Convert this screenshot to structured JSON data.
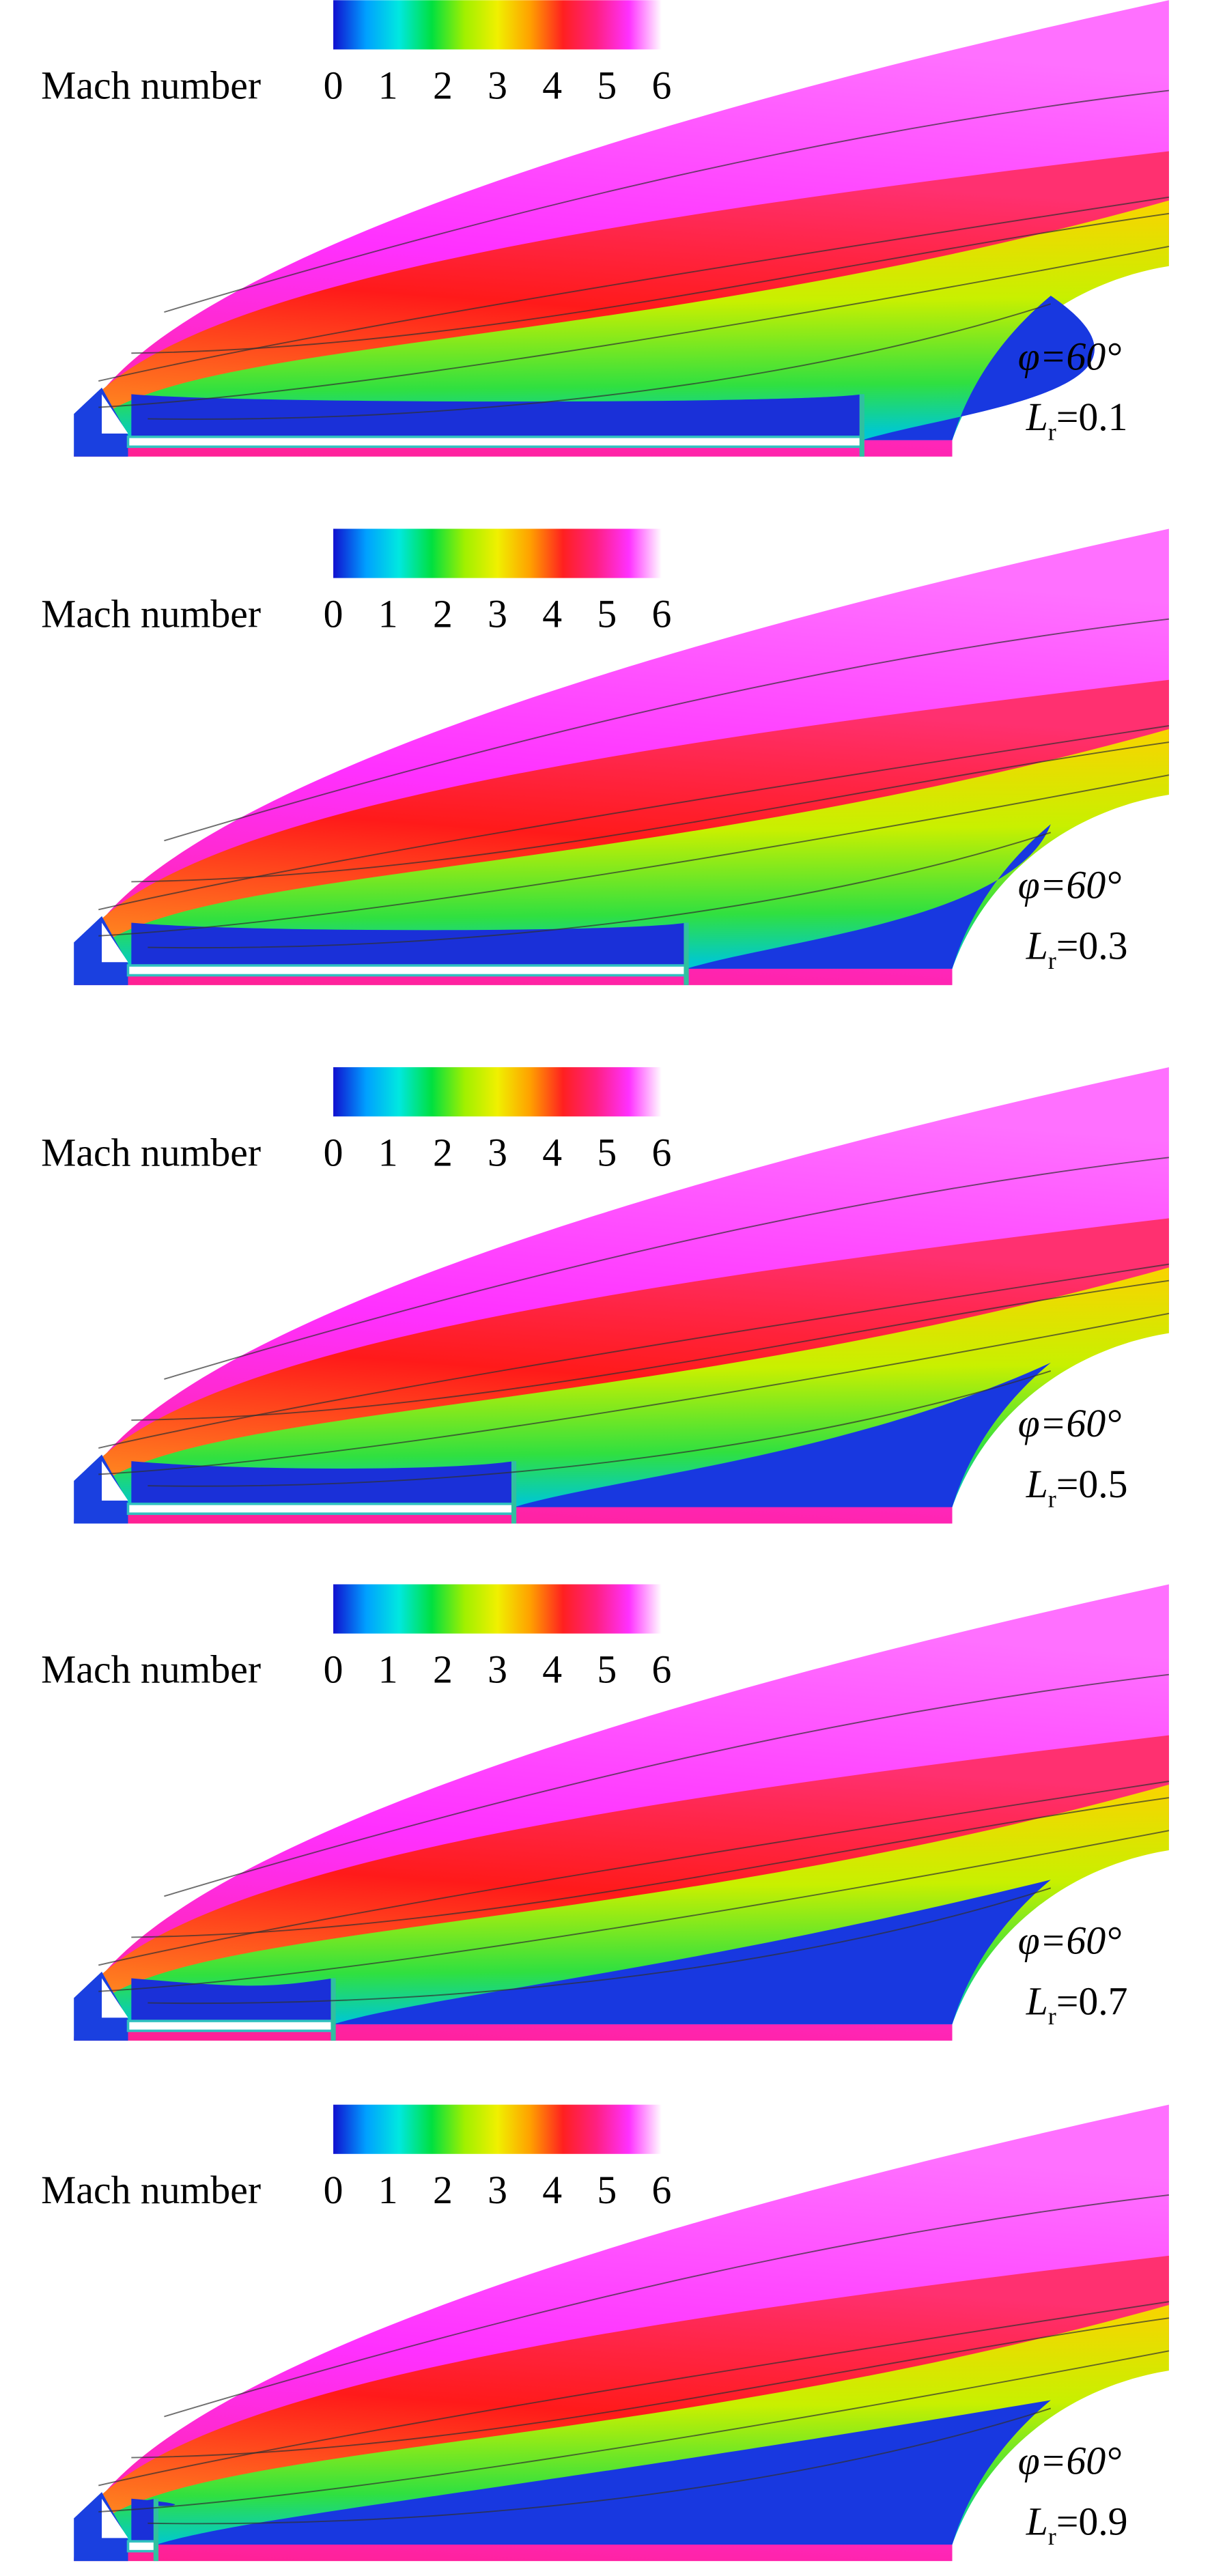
{
  "colormap": [
    "#1010d0",
    "#00a0ff",
    "#00e8e0",
    "#00e040",
    "#a0f000",
    "#f0f000",
    "#ffa000",
    "#ff2020",
    "#ff2080",
    "#ff30ff",
    "#ffffff"
  ],
  "panels": [
    {
      "colorbar": {
        "label": "Mach number",
        "ticks": [
          0,
          1,
          2,
          3,
          4,
          5,
          6
        ]
      },
      "angle": "φ=60°",
      "lr": {
        "symbol": "L",
        "subscript": "r",
        "value": "=0.1"
      }
    },
    {
      "colorbar": {
        "label": "Mach number",
        "ticks": [
          0,
          1,
          2,
          3,
          4,
          5,
          6
        ]
      },
      "angle": "φ=60°",
      "lr": {
        "symbol": "L",
        "subscript": "r",
        "value": "=0.3"
      }
    },
    {
      "colorbar": {
        "label": "Mach number",
        "ticks": [
          0,
          1,
          2,
          3,
          4,
          5,
          6
        ]
      },
      "angle": "φ=60°",
      "lr": {
        "symbol": "L",
        "subscript": "r",
        "value": "=0.5"
      }
    },
    {
      "colorbar": {
        "label": "Mach number",
        "ticks": [
          0,
          1,
          2,
          3,
          4,
          5,
          6
        ]
      },
      "angle": "φ=60°",
      "lr": {
        "symbol": "L",
        "subscript": "r",
        "value": "=0.7"
      }
    },
    {
      "colorbar": {
        "label": "Mach number",
        "ticks": [
          0,
          1,
          2,
          3,
          4,
          5,
          6
        ]
      },
      "angle": "φ=60°",
      "lr": {
        "symbol": "L",
        "subscript": "r",
        "value": "=0.9"
      }
    }
  ]
}
